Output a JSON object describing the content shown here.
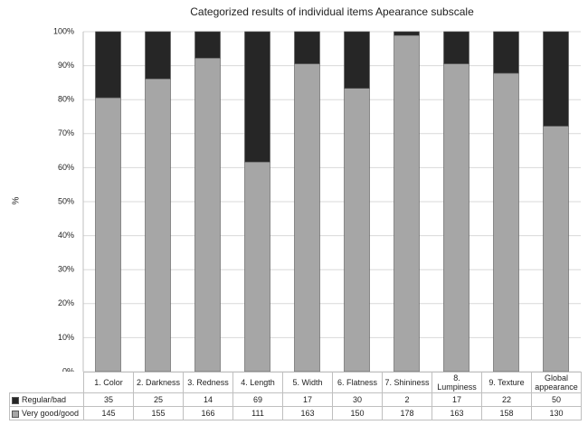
{
  "chart_data": {
    "type": "bar",
    "stacking": "percent",
    "title": "Categorized results of individual items Apearance subscale",
    "y_label": "%",
    "categories": [
      "1. Color",
      "2. Darkness",
      "3. Redness",
      "4. Length",
      "5. Width",
      "6. Flatness",
      "7. Shininess",
      "8. Lumpiness",
      "9. Texture",
      "Global appearance"
    ],
    "series": [
      {
        "name": "Regular/bad",
        "color": "#262626",
        "values": [
          35,
          25,
          14,
          69,
          17,
          30,
          2,
          17,
          22,
          50
        ]
      },
      {
        "name": "Very good/good",
        "color": "#a6a6a6",
        "values": [
          145,
          155,
          166,
          111,
          163,
          150,
          178,
          163,
          158,
          130
        ]
      }
    ],
    "ylim": [
      0,
      100
    ],
    "yticks": [
      {
        "value": 0,
        "label": "0%"
      },
      {
        "value": 10,
        "label": "10%"
      },
      {
        "value": 20,
        "label": "20%"
      },
      {
        "value": 30,
        "label": "30%"
      },
      {
        "value": 40,
        "label": "40%"
      },
      {
        "value": 50,
        "label": "50%"
      },
      {
        "value": 60,
        "label": "60%"
      },
      {
        "value": 70,
        "label": "70%"
      },
      {
        "value": 80,
        "label": "80%"
      },
      {
        "value": 90,
        "label": "90%"
      },
      {
        "value": 100,
        "label": "100%"
      }
    ],
    "grid": true,
    "data_table": true
  }
}
